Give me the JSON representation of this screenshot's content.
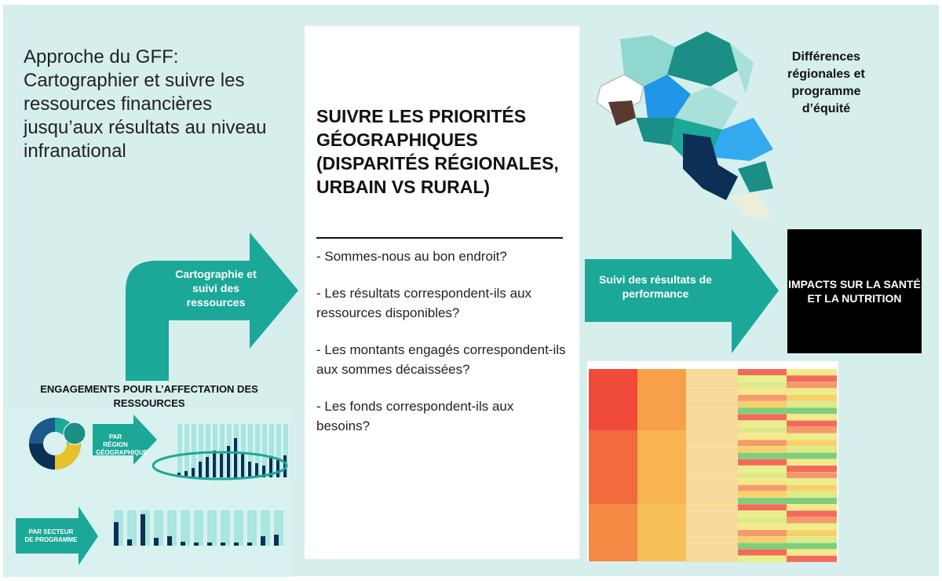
{
  "left_title": "Approche du GFF: Cartographier et suivre les ressources financières jusqu’aux résultats au niveau infranational",
  "arrow_mapping": "Cartographie et suivi des ressources",
  "center": {
    "heading": "SUIVRE LES PRIORITÉS GÉOGRAPHIQUES (DISPARITÉS RÉGIONALES, URBAIN VS RURAL)",
    "questions": [
      "- Sommes-nous au bon endroit?",
      "- Les résultats correspondent-ils aux ressources disponibles?",
      "- Les montants engagés correspondent-ils aux sommes décaissées?",
      "- Les fonds correspondent-ils aux besoins?"
    ]
  },
  "map_title": "Différences régionales et programme d’équité",
  "arrow_results": "Suivi des résultats de performance",
  "impact_box": "IMPACTS SUR LA SANTÉ ET LA NUTRITION",
  "engagements": {
    "title": "ENGAGEMENTS POUR L’AFFECTATION DES RESSOURCES",
    "by_region": "PAR RÉGION GÉOGRAPHIQUE",
    "by_program": "PAR SECTEUR DE PROGRAMME"
  }
}
